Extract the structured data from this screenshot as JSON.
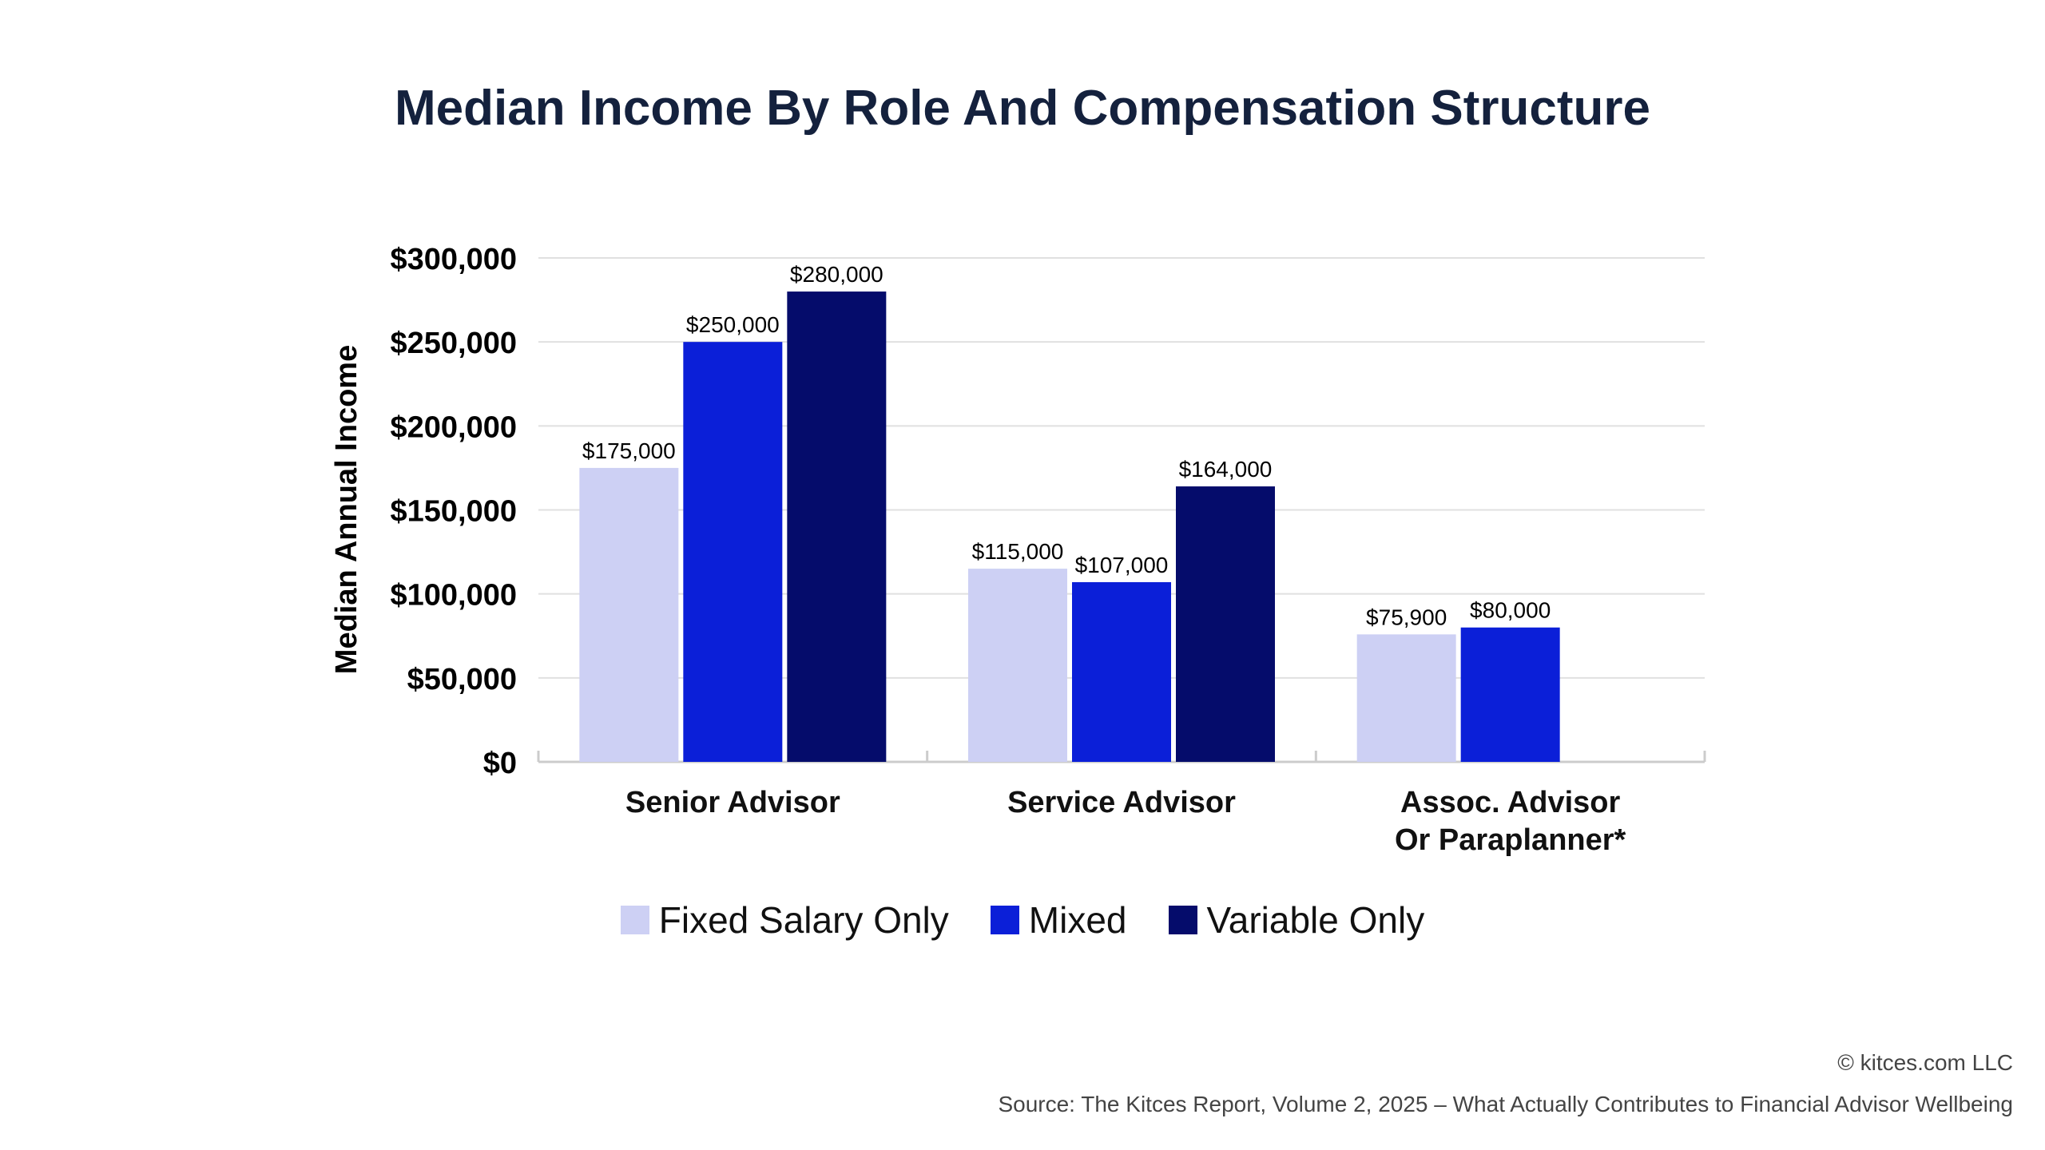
{
  "chart_data": {
    "type": "bar",
    "title": "Median Income By Role And Compensation Structure",
    "ylabel": "Median Annual Income",
    "xlabel": "",
    "ylim": [
      0,
      300000
    ],
    "yticks": [
      0,
      50000,
      100000,
      150000,
      200000,
      250000,
      300000
    ],
    "ytick_labels": [
      "$0",
      "$50,000",
      "$100,000",
      "$150,000",
      "$200,000",
      "$250,000",
      "$300,000"
    ],
    "grid": true,
    "legend_position": "bottom",
    "categories": [
      [
        "Senior Advisor"
      ],
      [
        "Service Advisor"
      ],
      [
        "Assoc. Advisor",
        "Or Paraplanner*"
      ]
    ],
    "series": [
      {
        "name": "Fixed Salary Only",
        "color": "#cdd0f4",
        "values": [
          175000,
          115000,
          75900
        ],
        "labels": [
          "$175,000",
          "$115,000",
          "$75,900"
        ]
      },
      {
        "name": "Mixed",
        "color": "#0b1fd8",
        "values": [
          250000,
          107000,
          80000
        ],
        "labels": [
          "$250,000",
          "$107,000",
          "$80,000"
        ]
      },
      {
        "name": "Variable Only",
        "color": "#050c6b",
        "values": [
          280000,
          164000,
          null
        ],
        "labels": [
          "$280,000",
          "$164,000",
          null
        ]
      }
    ]
  },
  "footer": {
    "copyright": "© kitces.com LLC",
    "source": "Source: The Kitces Report, Volume 2, 2025 – What Actually Contributes to Financial Advisor Wellbeing"
  }
}
